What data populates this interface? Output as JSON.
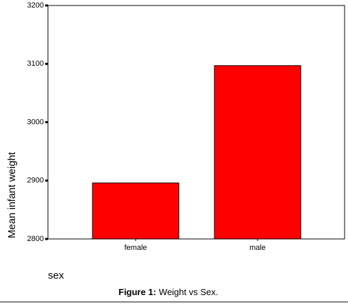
{
  "chart_data": {
    "type": "bar",
    "categories": [
      "female",
      "male"
    ],
    "values": [
      2896,
      3097
    ],
    "color": "#ff0000",
    "ylim": [
      2800,
      3200
    ],
    "yticks": [
      2800,
      2900,
      3000,
      3100,
      3200
    ],
    "x_label": "sex",
    "y_label": "Mean infant weight",
    "caption_label": "Figure 1:",
    "caption_text": "Weight vs Sex."
  }
}
